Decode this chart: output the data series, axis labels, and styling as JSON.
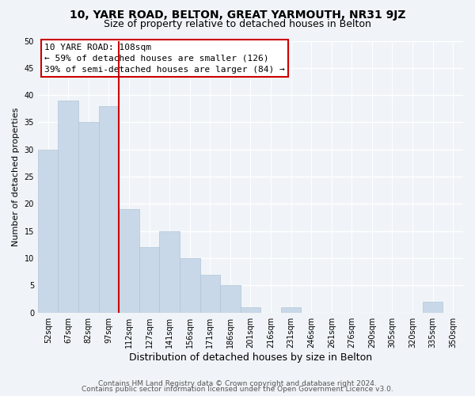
{
  "title1": "10, YARE ROAD, BELTON, GREAT YARMOUTH, NR31 9JZ",
  "title2": "Size of property relative to detached houses in Belton",
  "xlabel": "Distribution of detached houses by size in Belton",
  "ylabel": "Number of detached properties",
  "bar_labels": [
    "52sqm",
    "67sqm",
    "82sqm",
    "97sqm",
    "112sqm",
    "127sqm",
    "141sqm",
    "156sqm",
    "171sqm",
    "186sqm",
    "201sqm",
    "216sqm",
    "231sqm",
    "246sqm",
    "261sqm",
    "276sqm",
    "290sqm",
    "305sqm",
    "320sqm",
    "335sqm",
    "350sqm"
  ],
  "bar_values": [
    30,
    39,
    35,
    38,
    19,
    12,
    15,
    10,
    7,
    5,
    1,
    0,
    1,
    0,
    0,
    0,
    0,
    0,
    0,
    2,
    0
  ],
  "bar_color": "#c8d8e8",
  "bar_edge_color": "#b0c4d8",
  "highlight_bar_index": 4,
  "highlight_color": "#cc0000",
  "ylim": [
    0,
    50
  ],
  "yticks": [
    0,
    5,
    10,
    15,
    20,
    25,
    30,
    35,
    40,
    45,
    50
  ],
  "annotation_title": "10 YARE ROAD: 108sqm",
  "annotation_line1": "← 59% of detached houses are smaller (126)",
  "annotation_line2": "39% of semi-detached houses are larger (84) →",
  "footer1": "Contains HM Land Registry data © Crown copyright and database right 2024.",
  "footer2": "Contains public sector information licensed under the Open Government Licence v3.0.",
  "bg_color": "#f0f4f8",
  "annotation_box_color": "#ffffff",
  "annotation_box_edge": "#cc0000",
  "title1_fontsize": 10,
  "title2_fontsize": 9,
  "xlabel_fontsize": 9,
  "ylabel_fontsize": 8,
  "annotation_fontsize": 8,
  "tick_fontsize": 7,
  "footer_fontsize": 6.5
}
